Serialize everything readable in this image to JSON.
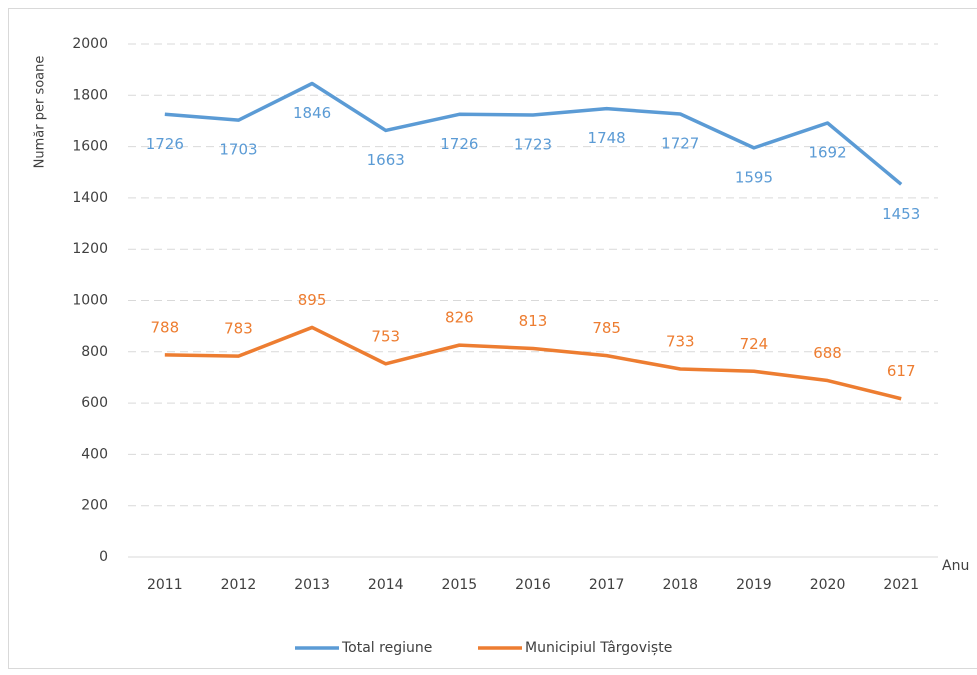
{
  "chart_data": {
    "type": "line",
    "x_label": "Anu",
    "y_label": "Număr per soane",
    "categories": [
      "2011",
      "2012",
      "2013",
      "2014",
      "2015",
      "2016",
      "2017",
      "2018",
      "2019",
      "2020",
      "2021"
    ],
    "series": [
      {
        "name": "Total regiune",
        "color": "#5b9bd5",
        "values": [
          1726,
          1703,
          1846,
          1663,
          1726,
          1723,
          1748,
          1727,
          1595,
          1692,
          1453
        ]
      },
      {
        "name": "Municipiul Târgoviște",
        "color": "#ed7d31",
        "values": [
          788,
          783,
          895,
          753,
          826,
          813,
          785,
          733,
          724,
          688,
          617
        ]
      }
    ],
    "ylim": [
      0,
      2000
    ],
    "yticks": [
      0,
      200,
      400,
      600,
      800,
      1000,
      1200,
      1400,
      1600,
      1800,
      2000
    ],
    "grid": true,
    "legend": "bottom"
  }
}
